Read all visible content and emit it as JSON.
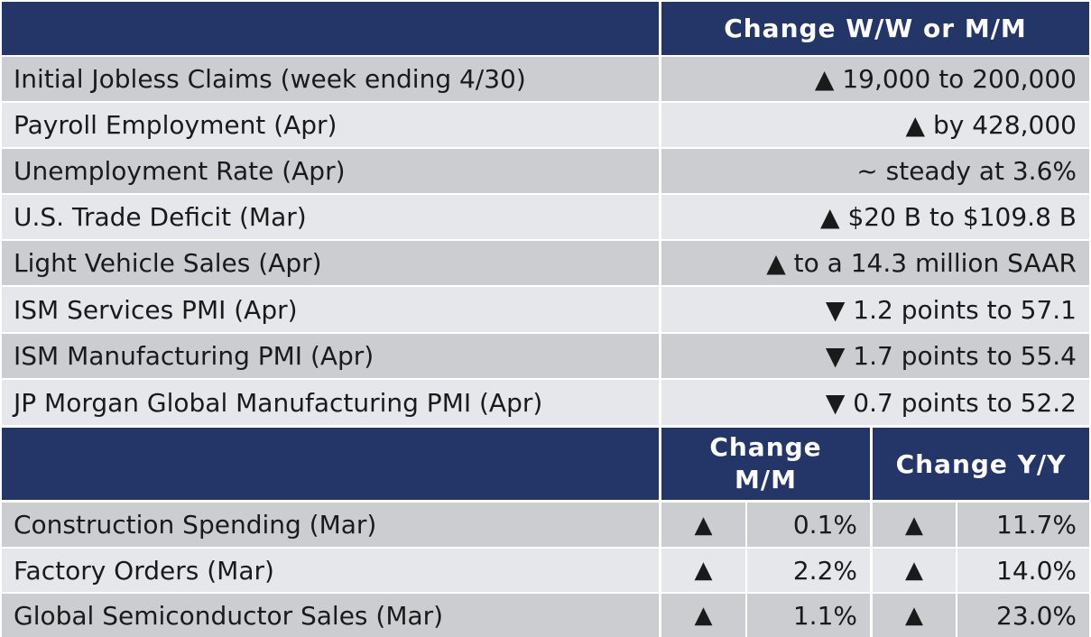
{
  "top_table": {
    "header": "Change W/W or M/M",
    "rows": [
      {
        "label": "Initial Jobless Claims (week ending 4/30)",
        "value": "▲ 19,000 to 200,000"
      },
      {
        "label": "Payroll Employment (Apr)",
        "value": "▲ by 428,000"
      },
      {
        "label": "Unemployment Rate (Apr)",
        "value": "~ steady at 3.6%"
      },
      {
        "label": "U.S. Trade Deficit (Mar)",
        "value": "▲ $20 B to $109.8 B"
      },
      {
        "label": "Light Vehicle Sales (Apr)",
        "value": "▲ to a 14.3 million SAAR"
      },
      {
        "label": "ISM Services PMI (Apr)",
        "value": "▼ 1.2 points to 57.1"
      },
      {
        "label": "ISM Manufacturing PMI (Apr)",
        "value": "▼ 1.7 points to 55.4"
      },
      {
        "label": "JP Morgan Global Manufacturing PMI (Apr)",
        "value": "▼ 0.7 points to 52.2"
      }
    ]
  },
  "bottom_table": {
    "header_mm_line1": "Change",
    "header_mm_line2": "M/M",
    "header_yy": "Change Y/Y",
    "rows": [
      {
        "label": "Construction Spending (Mar)",
        "mm_arrow": "▲",
        "mm_value": "0.1%",
        "yy_arrow": "▲",
        "yy_value": "11.7%"
      },
      {
        "label": "Factory Orders (Mar)",
        "mm_arrow": "▲",
        "mm_value": "2.2%",
        "yy_arrow": "▲",
        "yy_value": "14.0%"
      },
      {
        "label": "Global Semiconductor Sales (Mar)",
        "mm_arrow": "▲",
        "mm_value": "1.1%",
        "yy_arrow": "▲",
        "yy_value": "23.0%"
      }
    ]
  },
  "colors": {
    "header_bg": "#243568",
    "row_dark": "#cccdd1",
    "row_light": "#e6e7ea"
  }
}
